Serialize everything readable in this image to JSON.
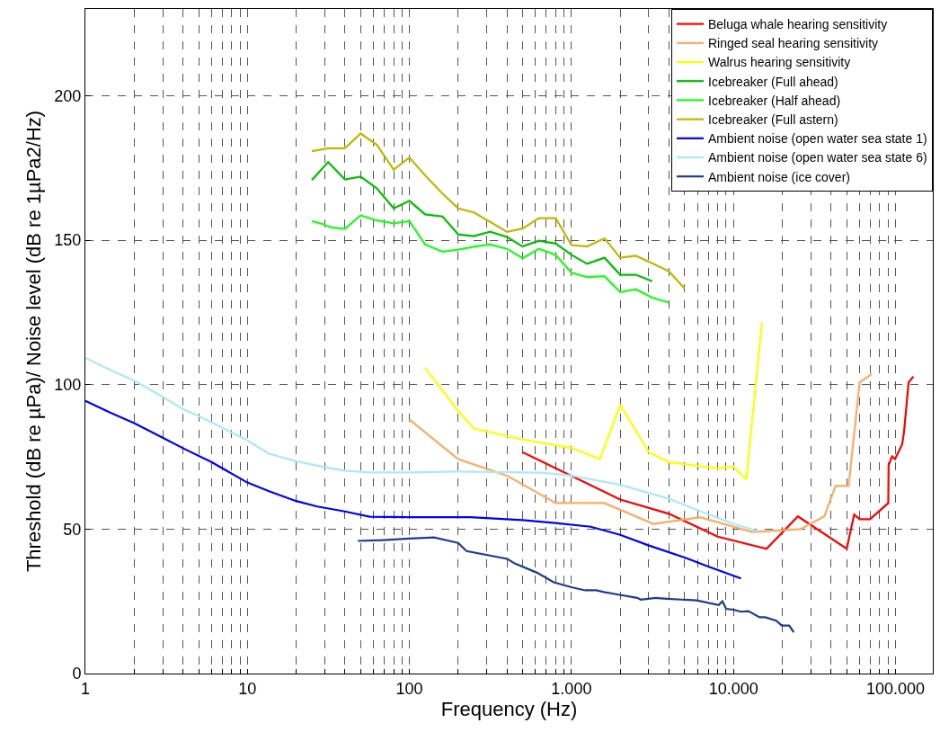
{
  "chart_data": {
    "type": "line",
    "xlabel": "Frequency (Hz)",
    "ylabel": "Threshold (dB re µPa)/ Noise level (dB re 1µPa2/Hz)",
    "log": "x",
    "grid": true,
    "legend": "top right",
    "line_style": "solid",
    "marker": "none",
    "xlim": [
      1,
      170000
    ],
    "ylim": [
      0,
      230
    ],
    "yticks": [
      0,
      50,
      100,
      150,
      200
    ],
    "xticks": [
      {
        "value": 1,
        "label": "1"
      },
      {
        "value": 2,
        "label": null
      },
      {
        "value": 3,
        "label": null
      },
      {
        "value": 4,
        "label": null
      },
      {
        "value": 5,
        "label": null
      },
      {
        "value": 6,
        "label": null
      },
      {
        "value": 7,
        "label": null
      },
      {
        "value": 8,
        "label": null
      },
      {
        "value": 9,
        "label": null
      },
      {
        "value": 10,
        "label": "10"
      },
      {
        "value": 20,
        "label": null
      },
      {
        "value": 30,
        "label": null
      },
      {
        "value": 40,
        "label": null
      },
      {
        "value": 50,
        "label": null
      },
      {
        "value": 60,
        "label": null
      },
      {
        "value": 70,
        "label": null
      },
      {
        "value": 80,
        "label": null
      },
      {
        "value": 90,
        "label": null
      },
      {
        "value": 100,
        "label": "100"
      },
      {
        "value": 200,
        "label": null
      },
      {
        "value": 300,
        "label": null
      },
      {
        "value": 400,
        "label": null
      },
      {
        "value": 500,
        "label": null
      },
      {
        "value": 600,
        "label": null
      },
      {
        "value": 700,
        "label": null
      },
      {
        "value": 800,
        "label": null
      },
      {
        "value": 900,
        "label": null
      },
      {
        "value": 1000,
        "label": "1.000"
      },
      {
        "value": 2000,
        "label": null
      },
      {
        "value": 3000,
        "label": null
      },
      {
        "value": 4000,
        "label": null
      },
      {
        "value": 5000,
        "label": null
      },
      {
        "value": 6000,
        "label": null
      },
      {
        "value": 7000,
        "label": null
      },
      {
        "value": 8000,
        "label": null
      },
      {
        "value": 9000,
        "label": null
      },
      {
        "value": 10000,
        "label": "10.000"
      },
      {
        "value": 20000,
        "label": null
      },
      {
        "value": 30000,
        "label": null
      },
      {
        "value": 40000,
        "label": null
      },
      {
        "value": 50000,
        "label": null
      },
      {
        "value": 60000,
        "label": null
      },
      {
        "value": 70000,
        "label": null
      },
      {
        "value": 80000,
        "label": null
      },
      {
        "value": 90000,
        "label": null
      },
      {
        "value": 100000,
        "label": "100.000"
      }
    ],
    "series": [
      {
        "name": "Beluga whale hearing sensitivity",
        "color": "#ff0000",
        "x": [
          500,
          2000,
          4000,
          8000,
          16000,
          25000,
          50000,
          55600,
          60100,
          69700,
          90300,
          90700,
          95100,
          99300,
          110000,
          113000,
          120500,
          129000
        ],
        "values": [
          76.6,
          60.2,
          55.3,
          47.4,
          43.2,
          54.4,
          43.2,
          55.0,
          53.4,
          53.4,
          59.0,
          72.0,
          75.1,
          74.2,
          79.3,
          83.8,
          100.8,
          102.8
        ]
      },
      {
        "name": "Ringed seal hearing sensitivity",
        "color": "#ffaa60",
        "x": [
          100,
          200,
          400,
          800,
          1600,
          3200,
          6230,
          13050,
          25900,
          36400,
          42700,
          51400,
          60100,
          71500
        ],
        "values": [
          87.9,
          74.2,
          68.5,
          59.0,
          59.0,
          51.8,
          54.1,
          49.0,
          50.0,
          54.4,
          64.9,
          64.9,
          100.8,
          103.7
        ]
      },
      {
        "name": "Walrus hearing sensitivity",
        "color": "#ffff00",
        "x": [
          125,
          200,
          250,
          500,
          1000,
          1500,
          2000,
          3000,
          4000,
          8000,
          10000,
          12000,
          15000
        ],
        "values": [
          105.8,
          90.9,
          84.8,
          81.0,
          78.1,
          74.2,
          93.0,
          76.6,
          73.2,
          71.0,
          71.7,
          67.2,
          121.6
        ]
      },
      {
        "name": "Icebreaker (Full ahead)",
        "color": "#00c000",
        "x": [
          25,
          31.5,
          40,
          50,
          63,
          80,
          100,
          125,
          160,
          200,
          250,
          315,
          400,
          500,
          630,
          800,
          1000,
          1250,
          1600,
          2000,
          2500,
          3150
        ],
        "values": [
          170.8,
          177.0,
          171.0,
          172.0,
          167.9,
          161.0,
          163.6,
          158.9,
          158.2,
          152.0,
          151.4,
          152.9,
          151.1,
          147.8,
          149.8,
          148.8,
          144.9,
          141.8,
          143.9,
          138.0,
          138.0,
          135.8
        ]
      },
      {
        "name": "Icebreaker (Half ahead)",
        "color": "#1aff1a",
        "x": [
          25,
          29,
          33,
          40,
          50,
          63,
          80,
          100,
          125,
          160,
          200,
          250,
          315,
          400,
          500,
          630,
          800,
          1000,
          1250,
          1600,
          2000,
          2500,
          3150,
          4000
        ],
        "values": [
          156.6,
          155.6,
          154.4,
          153.9,
          158.6,
          156.8,
          155.8,
          156.6,
          148.5,
          146.0,
          146.7,
          147.7,
          148.5,
          147.0,
          143.7,
          147.0,
          144.9,
          138.7,
          137.2,
          137.5,
          132.0,
          133.0,
          130.1,
          128.4
        ]
      },
      {
        "name": "Icebreaker (Full astern)",
        "color": "#c0b800",
        "x": [
          25,
          31.5,
          40,
          50,
          63,
          80,
          100,
          125,
          160,
          200,
          250,
          315,
          400,
          500,
          630,
          800,
          1000,
          1250,
          1600,
          2000,
          2500,
          3150,
          4000,
          5000
        ],
        "values": [
          180.8,
          181.8,
          181.8,
          186.9,
          183.0,
          174.4,
          178.6,
          172.4,
          166.1,
          161.0,
          159.6,
          156.3,
          152.9,
          154.0,
          157.6,
          157.6,
          148.3,
          147.8,
          150.6,
          143.9,
          144.6,
          142.0,
          139.2,
          133.2
        ]
      },
      {
        "name": "Ambient noise (open water sea state 1)",
        "color": "#0000ff",
        "x": [
          1,
          1.42,
          2,
          3,
          4,
          6,
          10,
          13.6,
          20,
          27,
          40,
          57,
          100,
          200,
          238,
          500,
          798,
          1316,
          2000,
          2980,
          5050,
          6930,
          11140
        ],
        "values": [
          94.4,
          90.3,
          86.7,
          81.6,
          78.0,
          73.2,
          66.1,
          63.1,
          59.7,
          57.8,
          56.1,
          54.3,
          54.1,
          54.1,
          54.1,
          53.1,
          52.1,
          50.8,
          48.0,
          44.4,
          40.1,
          37.1,
          32.9
        ]
      },
      {
        "name": "Ambient noise (open water sea state 6)",
        "color": "#aee8f8",
        "x": [
          1,
          1.42,
          2,
          3,
          4,
          6,
          10,
          13.6,
          20,
          30,
          40,
          57,
          100,
          200,
          650,
          1000,
          2000,
          4000,
          6570,
          10000,
          14100
        ],
        "values": [
          109.2,
          105.1,
          101.4,
          95.8,
          91.6,
          87.0,
          80.7,
          76.1,
          73.5,
          71.4,
          70.2,
          69.6,
          69.6,
          69.9,
          69.5,
          68.5,
          65.3,
          60.5,
          55.7,
          51.8,
          49.3
        ]
      },
      {
        "name": "Ambient noise (ice cover)",
        "color": "#1f3a93",
        "x": [
          48,
          69,
          100,
          142,
          200,
          225,
          402,
          447,
          613,
          777,
          1012,
          1216,
          1425,
          1585,
          1955,
          2545,
          2680,
          3312,
          3880,
          4795,
          5920,
          8110,
          8550,
          9010,
          10000,
          11140,
          12370,
          14490,
          15700,
          18360,
          19870,
          22100,
          23550
        ],
        "values": [
          45.9,
          46.2,
          46.7,
          47.1,
          45.2,
          42.4,
          39.7,
          38.1,
          34.9,
          31.6,
          29.8,
          28.8,
          28.8,
          28.2,
          27.3,
          26.2,
          25.6,
          26.2,
          25.9,
          25.6,
          25.3,
          23.7,
          25.0,
          22.4,
          22.1,
          21.4,
          21.6,
          19.5,
          19.5,
          18.3,
          16.6,
          16.6,
          14.3
        ]
      }
    ]
  }
}
